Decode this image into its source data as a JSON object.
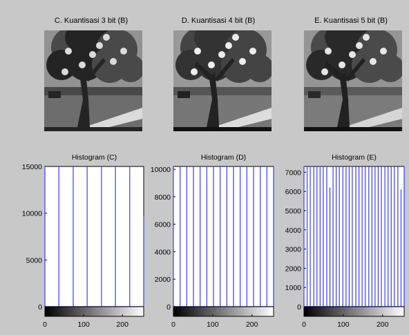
{
  "figure": {
    "images": [
      {
        "title": "C. Kuantisasi 3 bit (B)",
        "levels": 8
      },
      {
        "title": "D. Kuantisasi 4 bit (B)",
        "levels": 16
      },
      {
        "title": "E. Kuantisasi 5 bit (B)",
        "levels": 32
      }
    ]
  },
  "chart_data": [
    {
      "type": "bar",
      "title": "Histogram (C)",
      "xlim": [
        0,
        255
      ],
      "ylim": [
        0,
        15000
      ],
      "xticks": [
        0,
        100,
        200
      ],
      "yticks": [
        0,
        5000,
        10000,
        15000
      ],
      "x": [
        0,
        36,
        73,
        109,
        146,
        182,
        219,
        255
      ],
      "values": [
        15000,
        15000,
        15000,
        15000,
        15000,
        15000,
        15000,
        9700
      ],
      "bar_color": "#3a3aff",
      "colorbar": "grayscale"
    },
    {
      "type": "bar",
      "title": "Histogram (D)",
      "xlim": [
        0,
        255
      ],
      "ylim": [
        0,
        10200
      ],
      "xticks": [
        0,
        100,
        200
      ],
      "yticks": [
        0,
        2000,
        4000,
        6000,
        8000,
        10000
      ],
      "x": [
        0,
        17,
        34,
        51,
        68,
        85,
        102,
        119,
        136,
        153,
        170,
        187,
        204,
        221,
        238,
        255
      ],
      "values": [
        10200,
        10200,
        10200,
        10200,
        10200,
        10200,
        10200,
        10200,
        10200,
        10200,
        10200,
        10200,
        10200,
        10200,
        10200,
        10200
      ],
      "bar_color": "#3a3aff",
      "colorbar": "grayscale"
    },
    {
      "type": "bar",
      "title": "Histogram (E)",
      "xlim": [
        0,
        255
      ],
      "ylim": [
        0,
        7300
      ],
      "xticks": [
        0,
        100,
        200
      ],
      "yticks": [
        0,
        1000,
        2000,
        3000,
        4000,
        5000,
        6000,
        7000
      ],
      "x": [
        0,
        8,
        16,
        25,
        33,
        41,
        49,
        58,
        66,
        74,
        82,
        90,
        99,
        107,
        115,
        123,
        132,
        140,
        148,
        156,
        165,
        173,
        181,
        189,
        197,
        206,
        214,
        222,
        230,
        239,
        247,
        255
      ],
      "values": [
        7300,
        7300,
        7300,
        7300,
        7300,
        7300,
        7300,
        7300,
        6200,
        7300,
        7300,
        7300,
        7300,
        7300,
        7300,
        7300,
        7300,
        7300,
        7300,
        7300,
        7300,
        7300,
        7300,
        7300,
        7300,
        7300,
        7300,
        7300,
        7300,
        7300,
        6100,
        7300
      ],
      "bar_color": "#3a3aff",
      "colorbar": "grayscale"
    }
  ]
}
